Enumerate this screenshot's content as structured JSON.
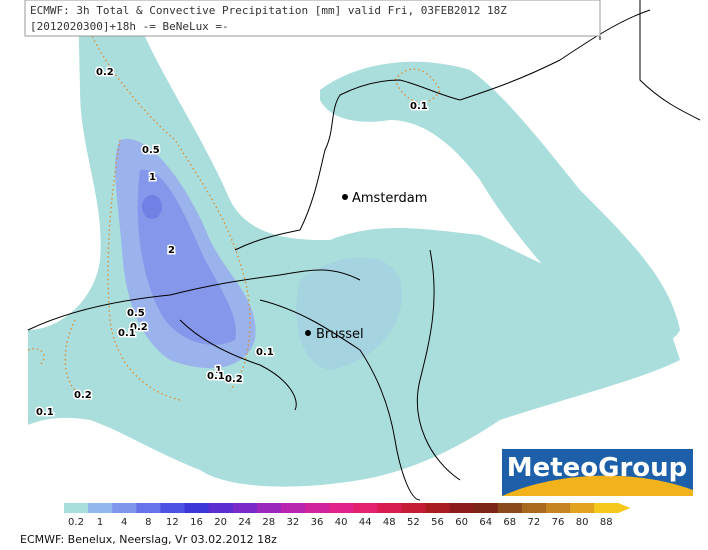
{
  "header": {
    "line1": "ECMWF: 3h Total & Convective Precipitation [mm] valid Fri, 03FEB2012 18Z",
    "line2": "[2012020300]+18h -= BeNeLux =-"
  },
  "cities": [
    "Amsterdam",
    "Brussel"
  ],
  "contour_labels": [
    "0.2",
    "0.5",
    "1",
    "2",
    "0.5",
    "0.2",
    "0.1",
    "0.1",
    "1",
    "0.2",
    "0.1",
    "0.2",
    "0.1",
    "0.1"
  ],
  "logo": "MeteoGroup",
  "legend": {
    "labels": [
      "0.2",
      "1",
      "4",
      "8",
      "12",
      "16",
      "20",
      "24",
      "28",
      "32",
      "36",
      "40",
      "44",
      "48",
      "52",
      "56",
      "60",
      "64",
      "68",
      "72",
      "76",
      "80",
      "88"
    ],
    "colors": [
      "#a6dedc",
      "#92b6ee",
      "#7f95ec",
      "#6673ea",
      "#4e52e4",
      "#3c36d8",
      "#5a2ed0",
      "#7a2ac8",
      "#9a28bc",
      "#b826b0",
      "#d0249e",
      "#e0228a",
      "#e42070",
      "#d81c50",
      "#c41c34",
      "#a81c22",
      "#8c1c1c",
      "#7a2418",
      "#8a4a1c",
      "#a8681e",
      "#c68420",
      "#e2a420",
      "#f6c81c"
    ]
  },
  "footer": "ECMWF: Benelux, Neerslag, Vr 03.02.2012 18z"
}
